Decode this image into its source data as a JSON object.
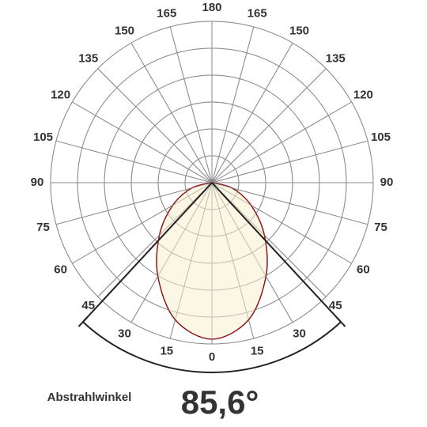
{
  "chart_data": {
    "type": "polar",
    "x": [
      -90,
      -75,
      -60,
      -45,
      -30,
      -15,
      0,
      15,
      30,
      45,
      60,
      75,
      90
    ],
    "values": [
      0,
      0.13,
      0.28,
      0.46,
      0.67,
      0.88,
      0.97,
      0.88,
      0.67,
      0.46,
      0.28,
      0.13,
      0
    ],
    "rlim": [
      0,
      1
    ],
    "color": "#8b1a1a",
    "fill": "#fbf6e0",
    "angle_ticks": [
      {
        "value": -180,
        "label": "180"
      },
      {
        "value": -165,
        "label": "165"
      },
      {
        "value": -150,
        "label": "150"
      },
      {
        "value": -135,
        "label": "135"
      },
      {
        "value": -120,
        "label": "120"
      },
      {
        "value": -105,
        "label": "105"
      },
      {
        "value": -90,
        "label": "90"
      },
      {
        "value": -75,
        "label": "75"
      },
      {
        "value": -60,
        "label": "60"
      },
      {
        "value": -45,
        "label": "45"
      },
      {
        "value": -30,
        "label": "30"
      },
      {
        "value": -15,
        "label": "15"
      },
      0,
      15,
      30,
      45,
      60,
      75,
      90,
      105,
      120,
      135,
      150,
      165
    ],
    "beam_label": "Abstrahlwinkel",
    "beam_angle": {
      "value": 85.6,
      "label": "85,6°"
    }
  }
}
